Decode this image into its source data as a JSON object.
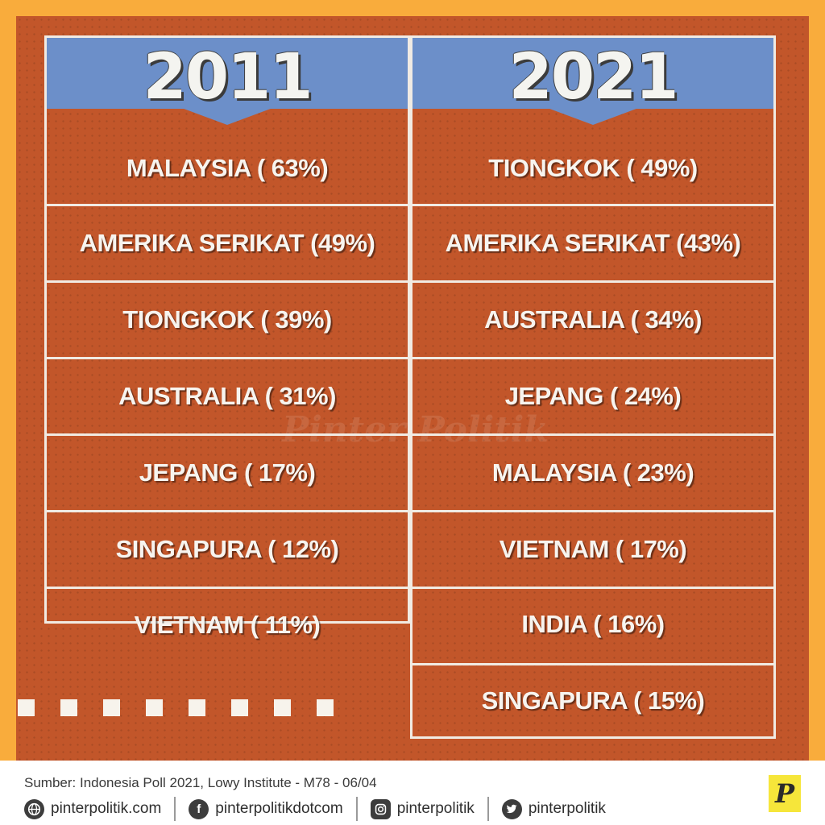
{
  "watermark": "Pinter Politik",
  "left_column": {
    "year": "2011",
    "items": [
      "MALAYSIA ( 63%)",
      "AMERIKA SERIKAT (49%)",
      "TIONGKOK ( 39%)",
      "AUSTRALIA ( 31%)",
      "JEPANG ( 17%)",
      "SINGAPURA ( 12%)",
      "VIETNAM ( 11%)"
    ]
  },
  "right_column": {
    "year": "2021",
    "items": [
      "TIONGKOK ( 49%)",
      "AMERIKA SERIKAT (43%)",
      "AUSTRALIA ( 34%)",
      "JEPANG ( 24%)",
      "MALAYSIA ( 23%)",
      "VIETNAM ( 17%)",
      "INDIA ( 16%)",
      "SINGAPURA ( 15%)"
    ]
  },
  "footer": {
    "source": "Sumber: Indonesia Poll 2021, Lowy Institute - M78 - 06/04",
    "socials": [
      {
        "icon": "globe-icon",
        "label": "pinterpolitik.com"
      },
      {
        "icon": "facebook-icon",
        "label": "pinterpolitikdotcom"
      },
      {
        "icon": "instagram-icon",
        "label": "pinterpolitik"
      },
      {
        "icon": "twitter-icon",
        "label": "pinterpolitik"
      }
    ],
    "logo": "P"
  },
  "colors": {
    "background": "#f9ac3c",
    "panel": "#c2562a",
    "header": "#6c8fc9",
    "text": "#f7f4ef",
    "logo": "#f6e63a"
  }
}
